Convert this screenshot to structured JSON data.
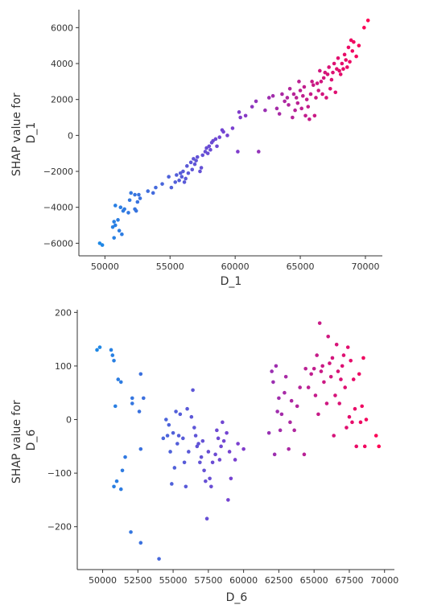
{
  "chart_data": [
    {
      "type": "scatter",
      "xlabel": "D_1",
      "ylabel_lines": [
        "SHAP value for",
        "D_1"
      ],
      "xlim": [
        48000,
        71300
      ],
      "ylim": [
        -6700,
        7000
      ],
      "xticks": [
        50000,
        55000,
        60000,
        65000,
        70000
      ],
      "yticks": [
        -6000,
        -4000,
        -2000,
        0,
        2000,
        4000,
        6000
      ],
      "color_scale": {
        "low": "#1e88e5",
        "mid": "#7b3fd0",
        "high": "#ff0052"
      },
      "points": [
        [
          49600,
          -6000
        ],
        [
          49800,
          -6100
        ],
        [
          50700,
          -5700
        ],
        [
          50600,
          -5100
        ],
        [
          50800,
          -5000
        ],
        [
          50700,
          -4800
        ],
        [
          51000,
          -4700
        ],
        [
          51100,
          -5300
        ],
        [
          51300,
          -5500
        ],
        [
          50800,
          -3900
        ],
        [
          51200,
          -4000
        ],
        [
          51400,
          -4200
        ],
        [
          51500,
          -4100
        ],
        [
          51900,
          -3600
        ],
        [
          51800,
          -4300
        ],
        [
          52000,
          -3200
        ],
        [
          52300,
          -4100
        ],
        [
          52500,
          -3700
        ],
        [
          52600,
          -3300
        ],
        [
          52700,
          -3500
        ],
        [
          52400,
          -4200
        ],
        [
          52300,
          -3300
        ],
        [
          53300,
          -3100
        ],
        [
          53700,
          -3200
        ],
        [
          53900,
          -2900
        ],
        [
          54400,
          -2700
        ],
        [
          54900,
          -2300
        ],
        [
          55100,
          -2900
        ],
        [
          55400,
          -2600
        ],
        [
          55500,
          -2200
        ],
        [
          55700,
          -2500
        ],
        [
          55800,
          -2100
        ],
        [
          55900,
          -2300
        ],
        [
          56000,
          -2000
        ],
        [
          56100,
          -2600
        ],
        [
          56200,
          -2400
        ],
        [
          56300,
          -1700
        ],
        [
          56400,
          -2100
        ],
        [
          56600,
          -1500
        ],
        [
          56700,
          -1900
        ],
        [
          56800,
          -1300
        ],
        [
          56900,
          -1600
        ],
        [
          57000,
          -1400
        ],
        [
          57100,
          -1200
        ],
        [
          57300,
          -2000
        ],
        [
          57400,
          -1800
        ],
        [
          57500,
          -1100
        ],
        [
          57700,
          -900
        ],
        [
          57800,
          -700
        ],
        [
          57900,
          -1000
        ],
        [
          58000,
          -600
        ],
        [
          58100,
          -800
        ],
        [
          58200,
          -400
        ],
        [
          58300,
          -300
        ],
        [
          58500,
          -200
        ],
        [
          58600,
          -600
        ],
        [
          58800,
          -100
        ],
        [
          59000,
          300
        ],
        [
          59100,
          200
        ],
        [
          59400,
          0
        ],
        [
          59800,
          400
        ],
        [
          60200,
          -900
        ],
        [
          60300,
          1300
        ],
        [
          60400,
          1000
        ],
        [
          60800,
          1100
        ],
        [
          61300,
          1600
        ],
        [
          61600,
          1900
        ],
        [
          61800,
          -900
        ],
        [
          62300,
          1400
        ],
        [
          62600,
          2100
        ],
        [
          62900,
          2200
        ],
        [
          63200,
          1500
        ],
        [
          63400,
          1200
        ],
        [
          63600,
          2300
        ],
        [
          63800,
          1900
        ],
        [
          64000,
          2100
        ],
        [
          64100,
          1700
        ],
        [
          64200,
          2600
        ],
        [
          64400,
          1000
        ],
        [
          64500,
          2300
        ],
        [
          64600,
          1400
        ],
        [
          64700,
          2100
        ],
        [
          64800,
          1800
        ],
        [
          64900,
          3000
        ],
        [
          65000,
          2500
        ],
        [
          65100,
          1500
        ],
        [
          65200,
          2200
        ],
        [
          65300,
          2700
        ],
        [
          65400,
          1100
        ],
        [
          65500,
          2000
        ],
        [
          65600,
          1600
        ],
        [
          65700,
          900
        ],
        [
          65800,
          2300
        ],
        [
          65900,
          3000
        ],
        [
          66000,
          2800
        ],
        [
          66100,
          1100
        ],
        [
          66200,
          2100
        ],
        [
          66300,
          2900
        ],
        [
          66400,
          2500
        ],
        [
          66500,
          3600
        ],
        [
          66600,
          3000
        ],
        [
          66700,
          2300
        ],
        [
          66800,
          3200
        ],
        [
          66900,
          3500
        ],
        [
          67000,
          2100
        ],
        [
          67100,
          3400
        ],
        [
          67200,
          3800
        ],
        [
          67300,
          2600
        ],
        [
          67400,
          3100
        ],
        [
          67500,
          3500
        ],
        [
          67600,
          4000
        ],
        [
          67700,
          2400
        ],
        [
          67800,
          3700
        ],
        [
          67900,
          4300
        ],
        [
          68000,
          3600
        ],
        [
          68100,
          3400
        ],
        [
          68200,
          4000
        ],
        [
          68300,
          3700
        ],
        [
          68400,
          4500
        ],
        [
          68500,
          4200
        ],
        [
          68600,
          3800
        ],
        [
          68700,
          4900
        ],
        [
          68800,
          4100
        ],
        [
          68900,
          5300
        ],
        [
          69000,
          4700
        ],
        [
          69100,
          5200
        ],
        [
          69300,
          4400
        ],
        [
          69500,
          5000
        ],
        [
          69900,
          6000
        ],
        [
          70200,
          6400
        ]
      ]
    },
    {
      "type": "scatter",
      "xlabel": "D_6",
      "ylabel_lines": [
        "SHAP value for",
        "D_6"
      ],
      "xlim": [
        48200,
        70700
      ],
      "ylim": [
        -280,
        205
      ],
      "xticks": [
        50000,
        52500,
        55000,
        57500,
        60000,
        62500,
        65000,
        67500,
        70000
      ],
      "yticks": [
        -200,
        -100,
        0,
        100,
        200
      ],
      "color_scale": {
        "low": "#1e88e5",
        "mid": "#7b3fd0",
        "high": "#ff0052"
      },
      "points": [
        [
          49600,
          130
        ],
        [
          49800,
          135
        ],
        [
          50600,
          130
        ],
        [
          50700,
          120
        ],
        [
          50800,
          110
        ],
        [
          51100,
          75
        ],
        [
          51300,
          70
        ],
        [
          50900,
          25
        ],
        [
          51600,
          -70
        ],
        [
          50800,
          -125
        ],
        [
          51000,
          -115
        ],
        [
          51300,
          -130
        ],
        [
          51400,
          -95
        ],
        [
          52000,
          -210
        ],
        [
          52100,
          40
        ],
        [
          52100,
          30
        ],
        [
          52600,
          15
        ],
        [
          52700,
          85
        ],
        [
          52900,
          40
        ],
        [
          52700,
          -55
        ],
        [
          52700,
          -230
        ],
        [
          54000,
          -260
        ],
        [
          54300,
          -35
        ],
        [
          54500,
          0
        ],
        [
          54600,
          -30
        ],
        [
          54700,
          -10
        ],
        [
          54800,
          -60
        ],
        [
          54900,
          -120
        ],
        [
          55000,
          -25
        ],
        [
          55100,
          -90
        ],
        [
          55200,
          15
        ],
        [
          55300,
          -45
        ],
        [
          55400,
          -30
        ],
        [
          55500,
          10
        ],
        [
          55700,
          -35
        ],
        [
          55800,
          -80
        ],
        [
          55900,
          -125
        ],
        [
          56000,
          20
        ],
        [
          56100,
          -60
        ],
        [
          56300,
          5
        ],
        [
          56400,
          55
        ],
        [
          56500,
          -15
        ],
        [
          56600,
          -30
        ],
        [
          56700,
          -50
        ],
        [
          56800,
          -45
        ],
        [
          56900,
          -80
        ],
        [
          57000,
          -70
        ],
        [
          57100,
          -40
        ],
        [
          57200,
          -95
        ],
        [
          57300,
          -115
        ],
        [
          57400,
          -185
        ],
        [
          57500,
          -60
        ],
        [
          57600,
          -110
        ],
        [
          57700,
          -125
        ],
        [
          57800,
          -80
        ],
        [
          58000,
          -65
        ],
        [
          58100,
          -20
        ],
        [
          58200,
          -35
        ],
        [
          58300,
          -75
        ],
        [
          58400,
          -50
        ],
        [
          58500,
          -5
        ],
        [
          58600,
          -40
        ],
        [
          58800,
          -25
        ],
        [
          58900,
          -150
        ],
        [
          59000,
          -60
        ],
        [
          59100,
          -110
        ],
        [
          59400,
          -75
        ],
        [
          59600,
          -45
        ],
        [
          60000,
          -55
        ],
        [
          61800,
          -25
        ],
        [
          62000,
          90
        ],
        [
          62100,
          70
        ],
        [
          62200,
          -65
        ],
        [
          62300,
          100
        ],
        [
          62400,
          15
        ],
        [
          62500,
          40
        ],
        [
          62600,
          -20
        ],
        [
          62700,
          10
        ],
        [
          62900,
          50
        ],
        [
          63000,
          80
        ],
        [
          63200,
          -55
        ],
        [
          63300,
          -5
        ],
        [
          63400,
          35
        ],
        [
          63600,
          -20
        ],
        [
          63800,
          25
        ],
        [
          64000,
          60
        ],
        [
          64300,
          -65
        ],
        [
          64400,
          95
        ],
        [
          64600,
          60
        ],
        [
          64800,
          85
        ],
        [
          65000,
          95
        ],
        [
          65100,
          45
        ],
        [
          65200,
          120
        ],
        [
          65300,
          10
        ],
        [
          65400,
          180
        ],
        [
          65500,
          90
        ],
        [
          65600,
          100
        ],
        [
          65700,
          70
        ],
        [
          65900,
          30
        ],
        [
          66000,
          155
        ],
        [
          66100,
          105
        ],
        [
          66200,
          80
        ],
        [
          66300,
          115
        ],
        [
          66400,
          -30
        ],
        [
          66500,
          45
        ],
        [
          66600,
          140
        ],
        [
          66700,
          90
        ],
        [
          66800,
          30
        ],
        [
          66900,
          75
        ],
        [
          67000,
          100
        ],
        [
          67100,
          120
        ],
        [
          67200,
          60
        ],
        [
          67300,
          -15
        ],
        [
          67400,
          135
        ],
        [
          67500,
          5
        ],
        [
          67600,
          110
        ],
        [
          67700,
          -5
        ],
        [
          67800,
          75
        ],
        [
          67900,
          20
        ],
        [
          68000,
          -50
        ],
        [
          68200,
          85
        ],
        [
          68300,
          -5
        ],
        [
          68400,
          25
        ],
        [
          68500,
          115
        ],
        [
          68600,
          -50
        ],
        [
          68700,
          0
        ],
        [
          69400,
          -30
        ],
        [
          69600,
          -50
        ]
      ]
    }
  ]
}
